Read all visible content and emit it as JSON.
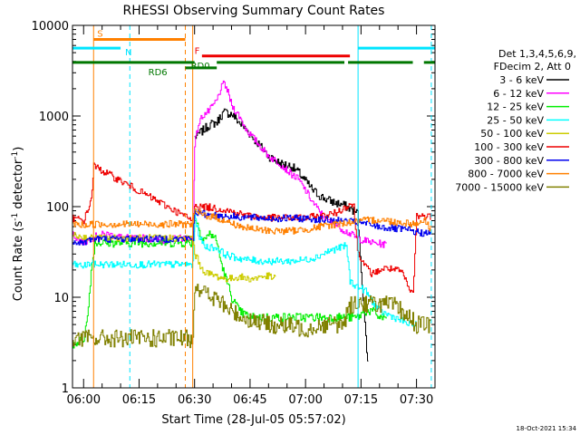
{
  "chart_data": {
    "type": "line",
    "title": "RHESSI Observing Summary Count Rates",
    "xlabel": "Start Time (28-Jul-05 05:57:02)",
    "ylabel": "Count Rate (s⁻¹ detector⁻¹)",
    "ylabel_main": "Count Rate (s",
    "ylabel_mid": " detector",
    "ylabel_end": ")",
    "ylabel_sup": "-1",
    "y_scale": "log",
    "ylim": [
      1,
      10000
    ],
    "xlim_minutes": [
      -3,
      95
    ],
    "x_ticks": [
      {
        "m": 0,
        "label": "06:00"
      },
      {
        "m": 15,
        "label": "06:15"
      },
      {
        "m": 30,
        "label": "06:30"
      },
      {
        "m": 45,
        "label": "06:45"
      },
      {
        "m": 60,
        "label": "07:00"
      },
      {
        "m": 75,
        "label": "07:15"
      },
      {
        "m": 90,
        "label": "07:30"
      }
    ],
    "y_ticks": [
      {
        "v": 1,
        "label": "1"
      },
      {
        "v": 10,
        "label": "10"
      },
      {
        "v": 100,
        "label": "100"
      },
      {
        "v": 1000,
        "label": "1000"
      },
      {
        "v": 10000,
        "label": "10000"
      }
    ],
    "legend_header": [
      "Det 1,3,4,5,6,9,",
      "FDecim 2, Att 0"
    ],
    "legend_placement": "right",
    "footer_date": "18-Oct-2021 15:34",
    "flag_bars": [
      {
        "label": "S",
        "color": "#ff8000",
        "y": 7000,
        "segments": [
          [
            2.7,
            27.5
          ]
        ]
      },
      {
        "label": "N",
        "color": "#00e5ff",
        "y": 5600,
        "segments": [
          [
            -3,
            10
          ],
          [
            74.2,
            95
          ]
        ]
      },
      {
        "label": "F",
        "color": "#ee0000",
        "y": 4600,
        "segments": [
          [
            32,
            72
          ]
        ]
      },
      {
        "label": "RD0",
        "color": "#007700",
        "y": 3900,
        "segments": [
          [
            -3,
            30
          ],
          [
            36,
            70.5
          ],
          [
            71.5,
            89
          ],
          [
            92,
            95
          ]
        ]
      },
      {
        "label": "RD6",
        "color": "#007700",
        "y": 3400,
        "segments": [
          [
            27.5,
            36
          ]
        ]
      }
    ],
    "vlines": [
      {
        "m": 2.7,
        "color": "#ff8000",
        "style": "solid"
      },
      {
        "m": 12.5,
        "color": "#00e5ff",
        "style": "dashed"
      },
      {
        "m": 27.5,
        "color": "#ff8000",
        "style": "dashed"
      },
      {
        "m": 29.5,
        "color": "#ff8000",
        "style": "solid"
      },
      {
        "m": 74.2,
        "color": "#00e5ff",
        "style": "solid"
      },
      {
        "m": 94,
        "color": "#00e5ff",
        "style": "dashed"
      }
    ],
    "series": [
      {
        "name": "3 - 6 keV",
        "color": "#000000",
        "noise": 0.05,
        "points": [
          [
            30,
            580
          ],
          [
            32,
            680
          ],
          [
            34,
            800
          ],
          [
            36,
            850
          ],
          [
            37,
            1000
          ],
          [
            38,
            1100
          ],
          [
            40,
            1050
          ],
          [
            42,
            850
          ],
          [
            44,
            700
          ],
          [
            46,
            560
          ],
          [
            48,
            450
          ],
          [
            50,
            360
          ],
          [
            53,
            300
          ],
          [
            56,
            280
          ],
          [
            58,
            240
          ],
          [
            60,
            190
          ],
          [
            62,
            150
          ],
          [
            64,
            130
          ],
          [
            66,
            118
          ],
          [
            68,
            110
          ],
          [
            70,
            105
          ],
          [
            72,
            95
          ],
          [
            74,
            85
          ],
          [
            76,
            5
          ],
          [
            77,
            1.5
          ]
        ]
      },
      {
        "name": "6 - 12 keV",
        "color": "#ff00ff",
        "noise": 0.04,
        "points": [
          [
            -3,
            50
          ],
          [
            -2,
            45
          ],
          [
            0,
            40
          ],
          [
            2,
            45
          ],
          [
            4,
            48
          ],
          [
            6,
            50
          ],
          [
            8,
            48
          ],
          [
            10,
            46
          ],
          [
            12,
            45
          ],
          [
            14,
            44
          ],
          [
            16,
            45
          ],
          [
            18,
            44
          ],
          [
            20,
            43
          ],
          [
            22,
            42
          ],
          [
            24,
            44
          ],
          [
            26,
            45
          ],
          [
            27.5,
            45
          ],
          [
            29.6,
            45
          ],
          [
            30,
            500
          ],
          [
            31,
            800
          ],
          [
            32,
            1000
          ],
          [
            34,
            1150
          ],
          [
            36,
            1500
          ],
          [
            37,
            2000
          ],
          [
            38,
            2300
          ],
          [
            39,
            1800
          ],
          [
            40,
            1300
          ],
          [
            42,
            1000
          ],
          [
            44,
            700
          ],
          [
            46,
            560
          ],
          [
            48,
            450
          ],
          [
            50,
            360
          ],
          [
            53,
            300
          ],
          [
            55,
            250
          ],
          [
            58,
            200
          ],
          [
            60,
            150
          ],
          [
            62,
            110
          ],
          [
            64,
            85
          ],
          [
            66,
            70
          ],
          [
            68,
            64
          ],
          [
            70,
            56
          ],
          [
            72,
            50
          ],
          [
            74,
            45
          ],
          [
            76,
            42
          ],
          [
            78,
            40
          ],
          [
            80,
            39
          ],
          [
            82,
            38
          ]
        ]
      },
      {
        "name": "12 - 25 keV",
        "color": "#00ee00",
        "noise": 0.05,
        "points": [
          [
            -3,
            3
          ],
          [
            0,
            3.5
          ],
          [
            1,
            6
          ],
          [
            2,
            20
          ],
          [
            3,
            40
          ],
          [
            29.5,
            40
          ],
          [
            30,
            75
          ],
          [
            31,
            60
          ],
          [
            32,
            45
          ],
          [
            33,
            45
          ],
          [
            34,
            50
          ],
          [
            35,
            48
          ],
          [
            36,
            40
          ],
          [
            37,
            25
          ],
          [
            38,
            18
          ],
          [
            40,
            10
          ],
          [
            42,
            7
          ],
          [
            45,
            6
          ],
          [
            50,
            6
          ],
          [
            55,
            6
          ],
          [
            60,
            6
          ],
          [
            65,
            6
          ],
          [
            70,
            6
          ],
          [
            72,
            6
          ],
          [
            74,
            6
          ],
          [
            76,
            7
          ],
          [
            78,
            7
          ],
          [
            80,
            6
          ],
          [
            82,
            6
          ]
        ]
      },
      {
        "name": "25 - 50 keV",
        "color": "#00ffff",
        "noise": 0.04,
        "points": [
          [
            -3,
            23
          ],
          [
            0,
            22
          ],
          [
            2,
            24
          ],
          [
            3,
            23
          ],
          [
            29.5,
            23
          ],
          [
            30,
            85
          ],
          [
            31,
            50
          ],
          [
            32,
            40
          ],
          [
            33,
            36
          ],
          [
            36,
            35
          ],
          [
            38,
            30
          ],
          [
            40,
            28
          ],
          [
            44,
            26
          ],
          [
            48,
            25
          ],
          [
            52,
            25
          ],
          [
            56,
            25
          ],
          [
            60,
            26
          ],
          [
            63,
            28
          ],
          [
            66,
            32
          ],
          [
            69,
            35
          ],
          [
            71,
            37
          ],
          [
            72,
            15
          ],
          [
            74,
            13
          ],
          [
            76,
            12
          ],
          [
            78,
            9
          ],
          [
            80,
            7
          ],
          [
            84,
            6
          ],
          [
            88,
            5
          ],
          [
            90,
            5
          ]
        ]
      },
      {
        "name": "50 - 100 keV",
        "color": "#cccc00",
        "noise": 0.04,
        "points": [
          [
            -3,
            48
          ],
          [
            0,
            46
          ],
          [
            2,
            45
          ],
          [
            29.5,
            45
          ],
          [
            30,
            30
          ],
          [
            31,
            25
          ],
          [
            32,
            20
          ],
          [
            34,
            18
          ],
          [
            36,
            17
          ],
          [
            38,
            16
          ],
          [
            40,
            16
          ],
          [
            42,
            17
          ],
          [
            44,
            16
          ],
          [
            46,
            16
          ],
          [
            48,
            17
          ],
          [
            50,
            17
          ],
          [
            52,
            16
          ]
        ]
      },
      {
        "name": "100 - 300 keV",
        "color": "#ee0000",
        "noise": 0.04,
        "points": [
          [
            -3,
            75
          ],
          [
            0,
            70
          ],
          [
            1,
            90
          ],
          [
            2,
            120
          ],
          [
            2.7,
            280
          ],
          [
            29.5,
            70
          ],
          [
            30,
            110
          ],
          [
            31,
            100
          ],
          [
            34,
            98
          ],
          [
            36,
            95
          ],
          [
            38,
            93
          ],
          [
            40,
            88
          ],
          [
            44,
            80
          ],
          [
            48,
            76
          ],
          [
            52,
            75
          ],
          [
            56,
            75
          ],
          [
            60,
            76
          ],
          [
            64,
            78
          ],
          [
            68,
            85
          ],
          [
            70,
            95
          ],
          [
            72,
            108
          ],
          [
            73,
            100
          ],
          [
            74,
            33
          ],
          [
            76,
            22
          ],
          [
            78,
            18
          ],
          [
            80,
            20
          ],
          [
            82,
            21
          ],
          [
            84,
            20
          ],
          [
            86,
            19
          ],
          [
            88,
            12
          ],
          [
            89,
            11
          ],
          [
            90,
            80
          ],
          [
            92,
            78
          ],
          [
            94,
            78
          ]
        ]
      },
      {
        "name": "300 - 800 keV",
        "color": "#0000ee",
        "noise": 0.04,
        "points": [
          [
            -3,
            42
          ],
          [
            0,
            40
          ],
          [
            2,
            44
          ],
          [
            29.5,
            44
          ],
          [
            30,
            90
          ],
          [
            31,
            85
          ],
          [
            33,
            82
          ],
          [
            36,
            80
          ],
          [
            40,
            78
          ],
          [
            44,
            76
          ],
          [
            48,
            75
          ],
          [
            52,
            74
          ],
          [
            56,
            74
          ],
          [
            60,
            74
          ],
          [
            64,
            72
          ],
          [
            68,
            70
          ],
          [
            72,
            68
          ],
          [
            76,
            65
          ],
          [
            80,
            60
          ],
          [
            84,
            57
          ],
          [
            88,
            55
          ],
          [
            90,
            52
          ],
          [
            94,
            50
          ]
        ]
      },
      {
        "name": "800 - 7000 keV",
        "color": "#ff8000",
        "noise": 0.04,
        "points": [
          [
            -3,
            65
          ],
          [
            0,
            62
          ],
          [
            2,
            64
          ],
          [
            29.5,
            64
          ],
          [
            30,
            90
          ],
          [
            31,
            85
          ],
          [
            33,
            80
          ],
          [
            36,
            75
          ],
          [
            40,
            65
          ],
          [
            44,
            58
          ],
          [
            48,
            55
          ],
          [
            52,
            54
          ],
          [
            56,
            54
          ],
          [
            60,
            56
          ],
          [
            64,
            60
          ],
          [
            68,
            64
          ],
          [
            72,
            67
          ],
          [
            76,
            70
          ],
          [
            80,
            72
          ],
          [
            84,
            68
          ],
          [
            88,
            66
          ],
          [
            90,
            64
          ],
          [
            92,
            72
          ],
          [
            94,
            55
          ]
        ]
      },
      {
        "name": "7000 - 15000 keV",
        "color": "#808000",
        "noise": 0.1,
        "points": [
          [
            -3,
            3.5
          ],
          [
            0,
            3.5
          ],
          [
            2,
            3.5
          ],
          [
            29.5,
            3.5
          ],
          [
            30,
            14
          ],
          [
            32,
            12
          ],
          [
            34,
            10
          ],
          [
            36,
            9.5
          ],
          [
            38,
            8
          ],
          [
            40,
            7
          ],
          [
            43,
            6
          ],
          [
            46,
            5.5
          ],
          [
            50,
            5
          ],
          [
            55,
            4.8
          ],
          [
            60,
            4.5
          ],
          [
            65,
            5
          ],
          [
            70,
            5
          ],
          [
            72,
            8
          ],
          [
            74,
            9
          ],
          [
            76,
            8.5
          ],
          [
            80,
            8.5
          ],
          [
            84,
            8
          ],
          [
            88,
            6
          ],
          [
            90,
            5
          ],
          [
            94,
            5
          ]
        ]
      }
    ]
  }
}
